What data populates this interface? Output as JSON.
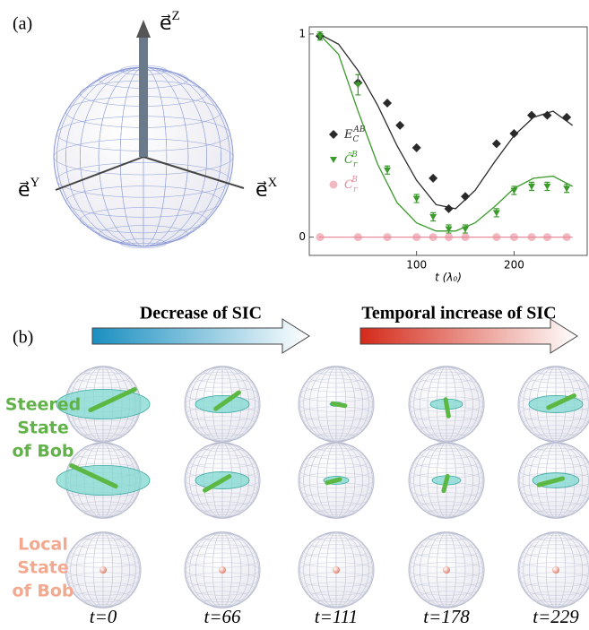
{
  "panel_a": {
    "label": "(a)",
    "axes": [
      {
        "base": "e⃗",
        "sup": "Z"
      },
      {
        "base": "e⃗",
        "sup": "Y"
      },
      {
        "base": "e⃗",
        "sup": "X"
      }
    ]
  },
  "chart_data": {
    "type": "scatter",
    "xlim": [
      -10,
      275
    ],
    "ylim": [
      -0.09,
      1.035
    ],
    "xticks": [
      100,
      200
    ],
    "yticks": [
      0,
      1
    ],
    "x_label": "t (λ₀)",
    "curve_x": [
      0,
      20,
      40,
      60,
      80,
      100,
      120,
      140,
      160,
      180,
      200,
      220,
      240,
      260
    ],
    "series": [
      {
        "name": "E",
        "sub": "C",
        "sup": "AB",
        "color": "#2a2a2a",
        "marker": "diamond",
        "x": [
          1,
          40,
          70,
          83,
          100,
          117,
          133,
          150,
          182,
          200,
          218,
          234,
          254
        ],
        "values": [
          0.99,
          0.76,
          0.66,
          0.55,
          0.44,
          0.29,
          0.14,
          0.2,
          0.46,
          0.51,
          0.6,
          0.6,
          0.59
        ],
        "curve": [
          1.0,
          0.95,
          0.82,
          0.65,
          0.45,
          0.28,
          0.16,
          0.14,
          0.23,
          0.37,
          0.5,
          0.59,
          0.62,
          0.55
        ]
      },
      {
        "name": "C̃",
        "sub": "r",
        "sup": "B",
        "color": "#3a9a2a",
        "marker": "triangle",
        "x": [
          1,
          40,
          70,
          100,
          117,
          133,
          150,
          182,
          200,
          218,
          234,
          254
        ],
        "values": [
          0.99,
          0.75,
          0.33,
          0.19,
          0.1,
          0.04,
          0.04,
          0.12,
          0.23,
          0.25,
          0.25,
          0.24
        ],
        "errors": [
          0.02,
          0.05,
          0.02,
          0.02,
          0.02,
          0.02,
          0.02,
          0.02,
          0.02,
          0.02,
          0.02,
          0.02
        ],
        "curve": [
          1.0,
          0.9,
          0.62,
          0.36,
          0.17,
          0.07,
          0.03,
          0.03,
          0.07,
          0.15,
          0.24,
          0.29,
          0.3,
          0.25
        ]
      },
      {
        "name": "C",
        "sub": "r",
        "sup": "B",
        "color": "#e98a9a",
        "marker": "circle",
        "x": [
          1,
          40,
          70,
          100,
          117,
          133,
          150,
          182,
          200,
          218,
          234,
          254
        ],
        "values": [
          0,
          0,
          0,
          0,
          0,
          0,
          0,
          0,
          0,
          0,
          0,
          0
        ],
        "curve": [
          0,
          0,
          0,
          0,
          0,
          0,
          0,
          0,
          0,
          0,
          0,
          0,
          0,
          0
        ]
      }
    ]
  },
  "panel_b": {
    "label": "(b)",
    "arrows": [
      "Decrease of SIC",
      "Temporal increase of SIC"
    ],
    "rows": [
      [
        "Steered",
        "State",
        "of Bob"
      ],
      [
        "Local",
        "State",
        "of Bob"
      ]
    ],
    "times": [
      "t=0",
      "t=66",
      "t=111",
      "t=178",
      "t=229"
    ]
  }
}
